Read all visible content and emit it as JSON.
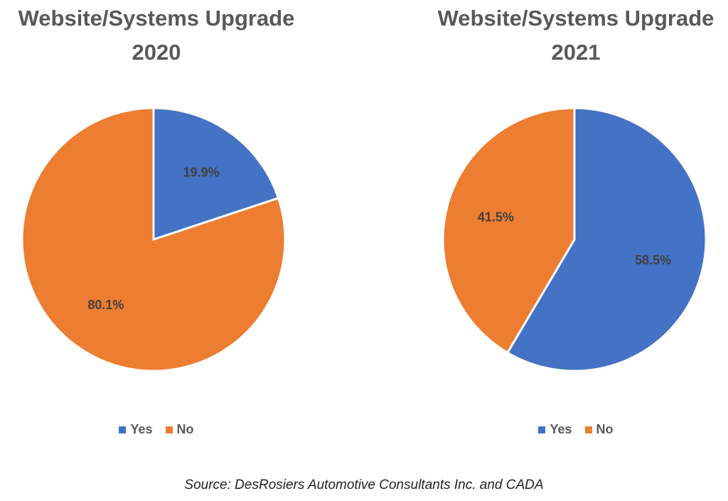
{
  "colors": {
    "yes": "#4472C4",
    "no": "#ED7D31",
    "title": "#595959",
    "label": "#404040"
  },
  "legend": {
    "yes_label": "Yes",
    "no_label": "No"
  },
  "chart_data": [
    {
      "type": "pie",
      "title_line1": "Website/Systems Upgrade",
      "title_line2": "2020",
      "slices": [
        {
          "name": "Yes",
          "value": 19.9,
          "label": "19.9%"
        },
        {
          "name": "No",
          "value": 80.1,
          "label": "80.1%"
        }
      ],
      "legend_position": "bottom"
    },
    {
      "type": "pie",
      "title_line1": "Website/Systems Upgrade",
      "title_line2": "2021",
      "slices": [
        {
          "name": "Yes",
          "value": 58.5,
          "label": "58.5%"
        },
        {
          "name": "No",
          "value": 41.5,
          "label": "41.5%"
        }
      ],
      "legend_position": "bottom"
    }
  ],
  "source": "Source: DesRosiers Automotive Consultants Inc. and CADA"
}
